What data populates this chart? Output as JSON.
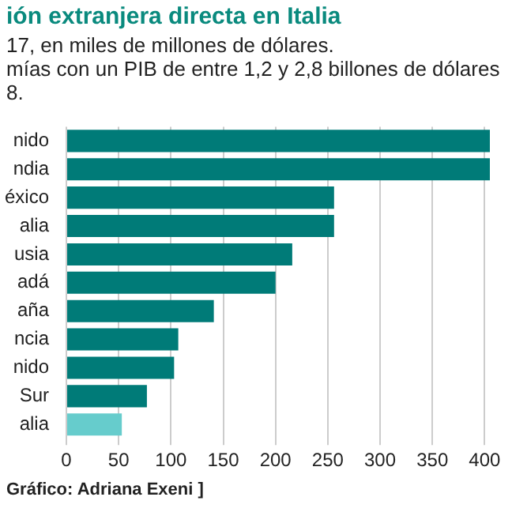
{
  "chart_data": {
    "type": "bar",
    "orientation": "horizontal",
    "title": "ión extranjera directa en Italia",
    "subtitle": "17, en miles de millones de dólares.\nmías con un PIB de entre 1,2 y 2,8 billones de dólares\n8.",
    "categories": [
      "nido",
      "ndia",
      "éxico",
      "alia",
      "usia",
      "adá",
      "aña",
      "ncia",
      "nido",
      "Sur",
      "alia"
    ],
    "values": [
      405,
      405,
      256,
      256,
      216,
      200,
      141,
      107,
      103,
      77,
      53
    ],
    "colors": [
      "#007b78",
      "#007b78",
      "#007b78",
      "#007b78",
      "#007b78",
      "#007b78",
      "#007b78",
      "#007b78",
      "#007b78",
      "#007b78",
      "#66cccc"
    ],
    "xlim": [
      0,
      405
    ],
    "xticks": [
      0,
      50,
      100,
      150,
      200,
      250,
      300,
      350,
      400
    ],
    "grid": "x",
    "annotations": [
      "Gráfico: Adriana Exeni ]"
    ]
  }
}
